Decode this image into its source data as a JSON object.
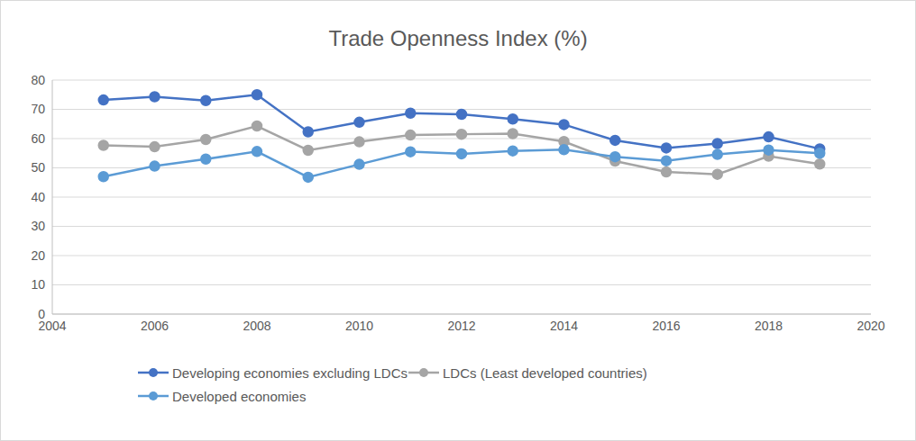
{
  "chart_data": {
    "type": "line",
    "title": "Trade Openness Index (%)",
    "x": [
      2005,
      2006,
      2007,
      2008,
      2009,
      2010,
      2011,
      2012,
      2013,
      2014,
      2015,
      2016,
      2017,
      2018,
      2019
    ],
    "series": [
      {
        "name": "Developing economies excluding LDCs",
        "color": "#4472c4",
        "values": [
          73.2,
          74.3,
          73,
          75,
          62.3,
          65.6,
          68.7,
          68.3,
          66.7,
          64.8,
          59.4,
          56.8,
          58.3,
          60.6,
          56.5
        ]
      },
      {
        "name": "LDCs (Least developed countries)",
        "color": "#a5a5a5",
        "values": [
          57.7,
          57.2,
          59.7,
          64.3,
          56,
          58.9,
          61.2,
          61.5,
          61.7,
          59,
          52.3,
          48.6,
          47.8,
          54,
          51.3
        ]
      },
      {
        "name": "Developed economies",
        "color": "#5b9bd5",
        "values": [
          47,
          50.6,
          53,
          55.6,
          46.8,
          51.2,
          55.5,
          54.8,
          55.8,
          56.2,
          53.8,
          52.4,
          54.6,
          56.1,
          55
        ]
      }
    ],
    "xlim": [
      2004,
      2020
    ],
    "xticks": [
      2004,
      2006,
      2008,
      2010,
      2012,
      2014,
      2016,
      2018,
      2020
    ],
    "ylim": [
      0,
      80
    ],
    "yticks": [
      0,
      10,
      20,
      30,
      40,
      50,
      60,
      70,
      80
    ],
    "grid": "y",
    "legend": "bottom",
    "marker": "circle",
    "line_style": "solid"
  }
}
